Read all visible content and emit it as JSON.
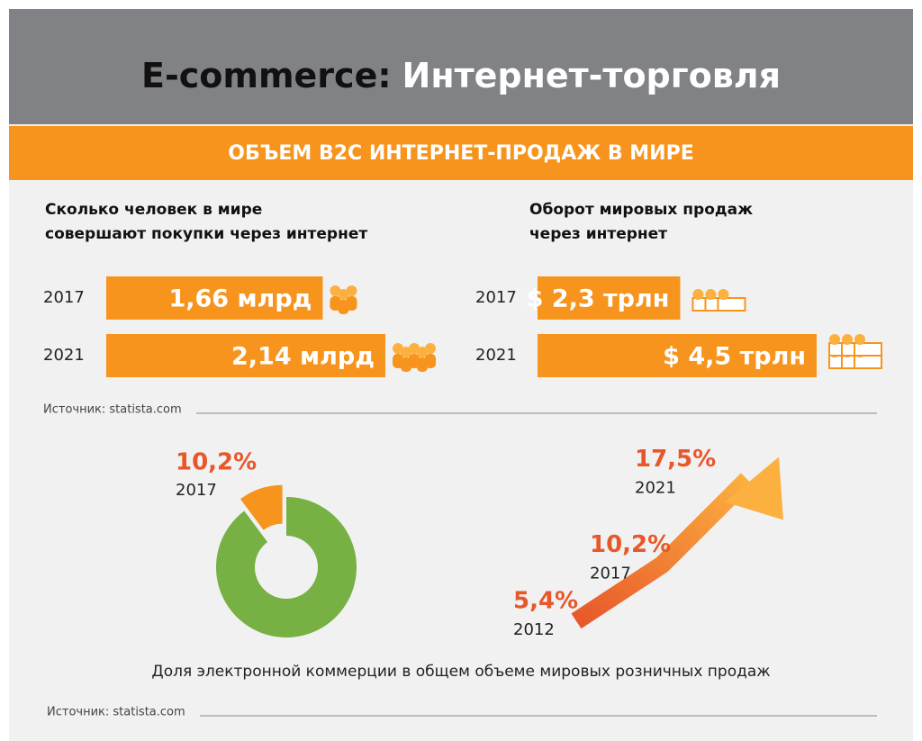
{
  "title_en": "E-commerce:",
  "title_ru": "Интернет-торговля",
  "banner": "ОБЪЕМ B2C ИНТЕРНЕТ-ПРОДАЖ В МИРЕ",
  "chart_data": [
    {
      "type": "bar",
      "title": [
        "Сколько человек в мире",
        "совершают покупки через интернет"
      ],
      "categories": [
        "2017",
        "2021"
      ],
      "values": [
        1.66,
        2.14
      ],
      "value_labels": [
        "1,66 млрд",
        "2,14 млрд"
      ],
      "color": "#f7941d"
    },
    {
      "type": "bar",
      "title": [
        "Оборот мировых продаж",
        "через интернет"
      ],
      "categories": [
        "2017",
        "2021"
      ],
      "values": [
        2.3,
        4.5
      ],
      "value_labels": [
        "$ 2,3 трлн",
        "$ 4,5 трлн"
      ],
      "color": "#f7941d"
    },
    {
      "type": "pie",
      "categories": [
        "2017"
      ],
      "values": [
        10.2
      ],
      "value_labels": [
        "10,2%"
      ],
      "color": "#f7941d",
      "rest_color": "#77b043"
    },
    {
      "type": "line",
      "x": [
        "2012",
        "2017",
        "2021"
      ],
      "values": [
        5.4,
        10.2,
        17.5
      ],
      "value_labels": [
        "5,4%",
        "10,2%",
        "17,5%"
      ],
      "color": "#f7941d"
    }
  ],
  "source_1": "Источник: statista.com",
  "caption": "Доля электронной коммерции в общем объеме мировых розничных продаж",
  "source_2": "Источник: statista.com"
}
